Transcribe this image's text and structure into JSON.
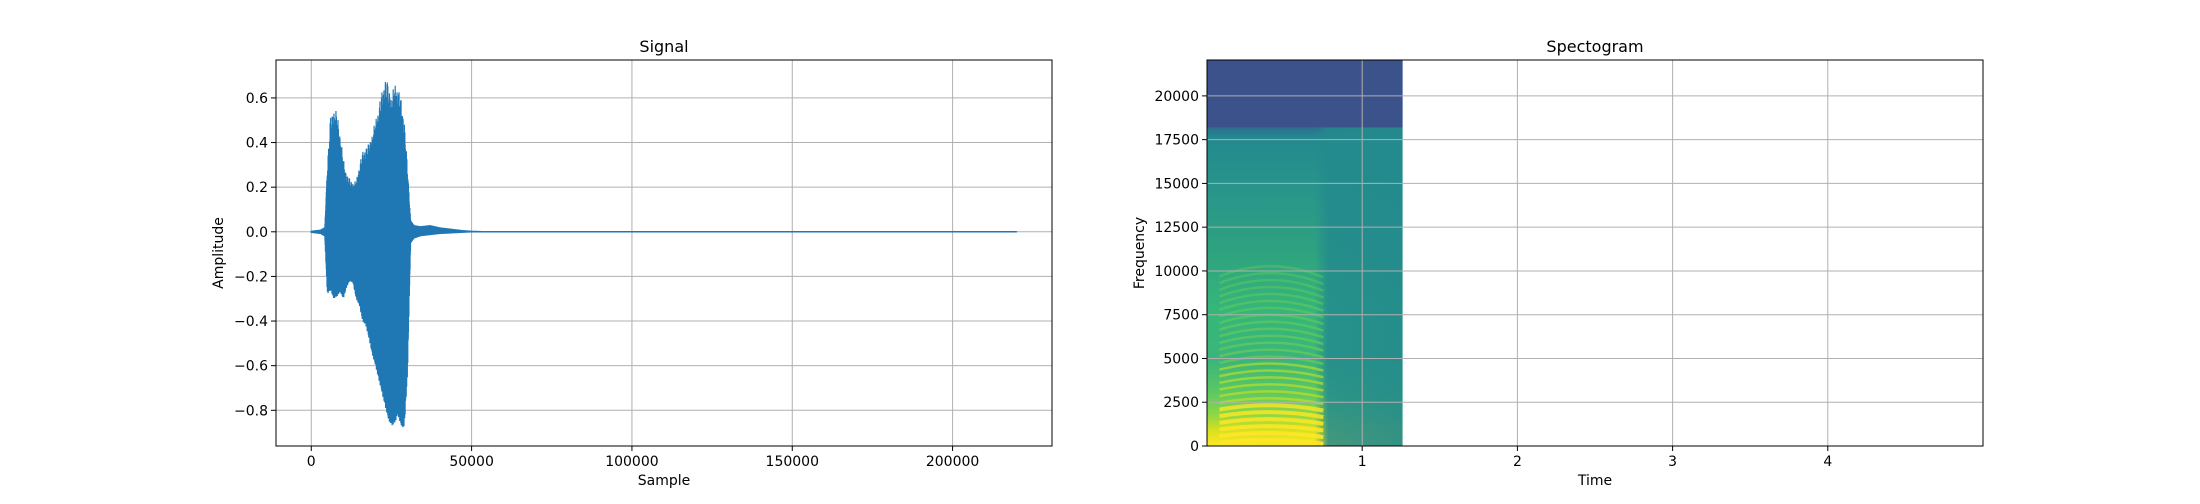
{
  "chart_data": [
    {
      "type": "line",
      "title": "Signal",
      "xlabel": "Sample",
      "ylabel": "Amplitude",
      "xlim": [
        -11000,
        231000
      ],
      "ylim": [
        -0.96,
        0.77
      ],
      "xticks": [
        0,
        50000,
        100000,
        150000,
        200000
      ],
      "xtick_labels": [
        "0",
        "50000",
        "100000",
        "150000",
        "200000"
      ],
      "yticks": [
        -0.8,
        -0.6,
        -0.4,
        -0.2,
        0.0,
        0.2,
        0.4,
        0.6
      ],
      "ytick_labels": [
        "−0.8",
        "−0.6",
        "−0.4",
        "−0.2",
        "0.0",
        "0.2",
        "0.4",
        "0.6"
      ],
      "grid": true,
      "series": [
        {
          "color": "#1f77b4",
          "envelope": {
            "x": [
              0,
              3000,
              4200,
              5000,
              6000,
              7000,
              8000,
              9000,
              10000,
              11000,
              12000,
              13000,
              14000,
              15000,
              16000,
              17000,
              18000,
              19000,
              20000,
              21000,
              22000,
              23000,
              24000,
              25000,
              26000,
              27000,
              28000,
              29000,
              30000,
              31000,
              32000,
              34000,
              37000,
              40000,
              43000,
              47000,
              50000,
              55000,
              100000,
              150000,
              200000,
              220000
            ],
            "upper": [
              0.005,
              0.01,
              0.02,
              0.3,
              0.52,
              0.55,
              0.54,
              0.44,
              0.33,
              0.26,
              0.24,
              0.22,
              0.23,
              0.3,
              0.36,
              0.38,
              0.4,
              0.44,
              0.5,
              0.56,
              0.63,
              0.69,
              0.67,
              0.6,
              0.67,
              0.65,
              0.6,
              0.5,
              0.3,
              0.05,
              0.03,
              0.025,
              0.03,
              0.02,
              0.015,
              0.008,
              0.005,
              0.003,
              0.002,
              0.002,
              0.002,
              0.002
            ],
            "lower": [
              -0.005,
              -0.01,
              -0.02,
              -0.28,
              -0.26,
              -0.3,
              -0.29,
              -0.27,
              -0.3,
              -0.25,
              -0.22,
              -0.23,
              -0.3,
              -0.33,
              -0.4,
              -0.42,
              -0.48,
              -0.55,
              -0.6,
              -0.66,
              -0.72,
              -0.78,
              -0.84,
              -0.87,
              -0.86,
              -0.82,
              -0.87,
              -0.88,
              -0.65,
              -0.05,
              -0.03,
              -0.02,
              -0.015,
              -0.01,
              -0.008,
              -0.005,
              -0.003,
              -0.002,
              -0.002,
              -0.002,
              -0.002,
              -0.002
            ]
          }
        }
      ]
    },
    {
      "type": "heatmap",
      "title": "Spectogram",
      "xlabel": "Time",
      "ylabel": "Frequency",
      "xlim": [
        0,
        5.0
      ],
      "ylim": [
        0,
        22050
      ],
      "data_extent_x": [
        0,
        1.26
      ],
      "xticks": [
        1,
        2,
        3,
        4
      ],
      "xtick_labels": [
        "1",
        "2",
        "3",
        "4"
      ],
      "yticks": [
        0,
        2500,
        5000,
        7500,
        10000,
        12500,
        15000,
        17500,
        20000
      ],
      "ytick_labels": [
        "0",
        "2500",
        "5000",
        "7500",
        "10000",
        "12500",
        "15000",
        "17500",
        "20000"
      ],
      "grid": true,
      "colormap": "viridis"
    }
  ]
}
